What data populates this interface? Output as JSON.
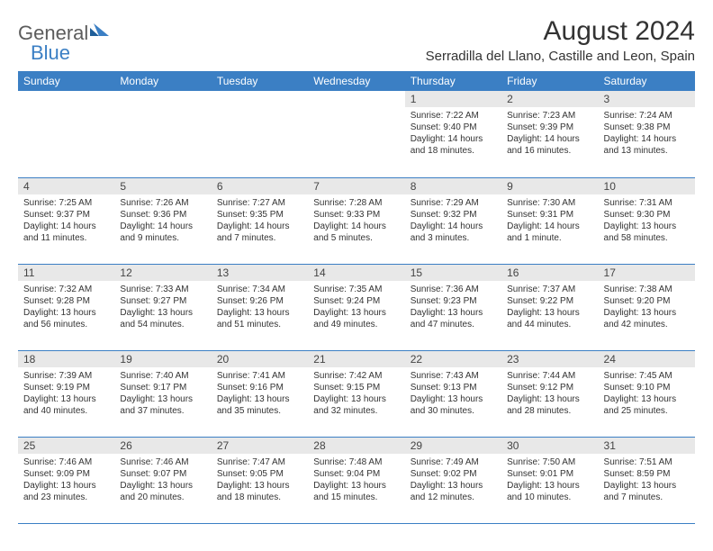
{
  "brand": {
    "part1": "General",
    "part2": "Blue"
  },
  "title": "August 2024",
  "location": "Serradilla del Llano, Castille and Leon, Spain",
  "colors": {
    "header_bg": "#3b7fc4",
    "header_fg": "#ffffff",
    "daynum_bg": "#e8e8e8",
    "row_border": "#3b7fc4",
    "text": "#333333",
    "logo_gray": "#5c5c5c",
    "logo_blue": "#3b7fc4",
    "background": "#ffffff"
  },
  "typography": {
    "title_fontsize": 30,
    "location_fontsize": 15,
    "header_fontsize": 12,
    "daynum_fontsize": 12,
    "body_fontsize": 10
  },
  "days_of_week": [
    "Sunday",
    "Monday",
    "Tuesday",
    "Wednesday",
    "Thursday",
    "Friday",
    "Saturday"
  ],
  "first_weekday_index": 4,
  "days": [
    {
      "n": 1,
      "sunrise": "7:22 AM",
      "sunset": "9:40 PM",
      "daylight": "14 hours and 18 minutes."
    },
    {
      "n": 2,
      "sunrise": "7:23 AM",
      "sunset": "9:39 PM",
      "daylight": "14 hours and 16 minutes."
    },
    {
      "n": 3,
      "sunrise": "7:24 AM",
      "sunset": "9:38 PM",
      "daylight": "14 hours and 13 minutes."
    },
    {
      "n": 4,
      "sunrise": "7:25 AM",
      "sunset": "9:37 PM",
      "daylight": "14 hours and 11 minutes."
    },
    {
      "n": 5,
      "sunrise": "7:26 AM",
      "sunset": "9:36 PM",
      "daylight": "14 hours and 9 minutes."
    },
    {
      "n": 6,
      "sunrise": "7:27 AM",
      "sunset": "9:35 PM",
      "daylight": "14 hours and 7 minutes."
    },
    {
      "n": 7,
      "sunrise": "7:28 AM",
      "sunset": "9:33 PM",
      "daylight": "14 hours and 5 minutes."
    },
    {
      "n": 8,
      "sunrise": "7:29 AM",
      "sunset": "9:32 PM",
      "daylight": "14 hours and 3 minutes."
    },
    {
      "n": 9,
      "sunrise": "7:30 AM",
      "sunset": "9:31 PM",
      "daylight": "14 hours and 1 minute."
    },
    {
      "n": 10,
      "sunrise": "7:31 AM",
      "sunset": "9:30 PM",
      "daylight": "13 hours and 58 minutes."
    },
    {
      "n": 11,
      "sunrise": "7:32 AM",
      "sunset": "9:28 PM",
      "daylight": "13 hours and 56 minutes."
    },
    {
      "n": 12,
      "sunrise": "7:33 AM",
      "sunset": "9:27 PM",
      "daylight": "13 hours and 54 minutes."
    },
    {
      "n": 13,
      "sunrise": "7:34 AM",
      "sunset": "9:26 PM",
      "daylight": "13 hours and 51 minutes."
    },
    {
      "n": 14,
      "sunrise": "7:35 AM",
      "sunset": "9:24 PM",
      "daylight": "13 hours and 49 minutes."
    },
    {
      "n": 15,
      "sunrise": "7:36 AM",
      "sunset": "9:23 PM",
      "daylight": "13 hours and 47 minutes."
    },
    {
      "n": 16,
      "sunrise": "7:37 AM",
      "sunset": "9:22 PM",
      "daylight": "13 hours and 44 minutes."
    },
    {
      "n": 17,
      "sunrise": "7:38 AM",
      "sunset": "9:20 PM",
      "daylight": "13 hours and 42 minutes."
    },
    {
      "n": 18,
      "sunrise": "7:39 AM",
      "sunset": "9:19 PM",
      "daylight": "13 hours and 40 minutes."
    },
    {
      "n": 19,
      "sunrise": "7:40 AM",
      "sunset": "9:17 PM",
      "daylight": "13 hours and 37 minutes."
    },
    {
      "n": 20,
      "sunrise": "7:41 AM",
      "sunset": "9:16 PM",
      "daylight": "13 hours and 35 minutes."
    },
    {
      "n": 21,
      "sunrise": "7:42 AM",
      "sunset": "9:15 PM",
      "daylight": "13 hours and 32 minutes."
    },
    {
      "n": 22,
      "sunrise": "7:43 AM",
      "sunset": "9:13 PM",
      "daylight": "13 hours and 30 minutes."
    },
    {
      "n": 23,
      "sunrise": "7:44 AM",
      "sunset": "9:12 PM",
      "daylight": "13 hours and 28 minutes."
    },
    {
      "n": 24,
      "sunrise": "7:45 AM",
      "sunset": "9:10 PM",
      "daylight": "13 hours and 25 minutes."
    },
    {
      "n": 25,
      "sunrise": "7:46 AM",
      "sunset": "9:09 PM",
      "daylight": "13 hours and 23 minutes."
    },
    {
      "n": 26,
      "sunrise": "7:46 AM",
      "sunset": "9:07 PM",
      "daylight": "13 hours and 20 minutes."
    },
    {
      "n": 27,
      "sunrise": "7:47 AM",
      "sunset": "9:05 PM",
      "daylight": "13 hours and 18 minutes."
    },
    {
      "n": 28,
      "sunrise": "7:48 AM",
      "sunset": "9:04 PM",
      "daylight": "13 hours and 15 minutes."
    },
    {
      "n": 29,
      "sunrise": "7:49 AM",
      "sunset": "9:02 PM",
      "daylight": "13 hours and 12 minutes."
    },
    {
      "n": 30,
      "sunrise": "7:50 AM",
      "sunset": "9:01 PM",
      "daylight": "13 hours and 10 minutes."
    },
    {
      "n": 31,
      "sunrise": "7:51 AM",
      "sunset": "8:59 PM",
      "daylight": "13 hours and 7 minutes."
    }
  ],
  "labels": {
    "sunrise_prefix": "Sunrise: ",
    "sunset_prefix": "Sunset: ",
    "daylight_prefix": "Daylight: "
  }
}
